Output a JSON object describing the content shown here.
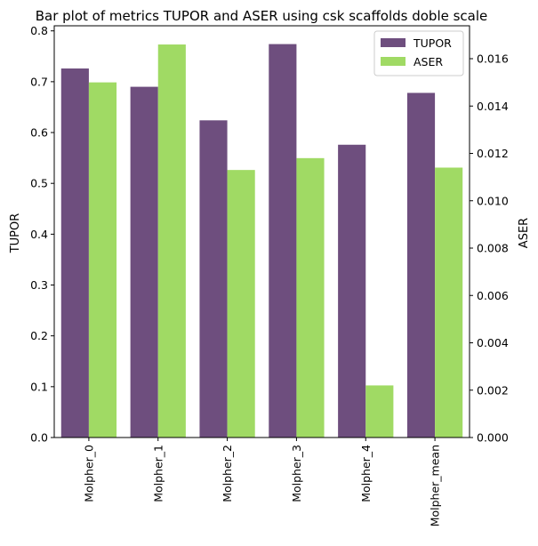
{
  "chart_data": {
    "type": "bar",
    "title": "Bar plot of metrics TUPOR and ASER using csk scaffolds doble scale",
    "categories": [
      "Molpher_0",
      "Molpher_1",
      "Molpher_2",
      "Molpher_3",
      "Molpher_4",
      "Molpher_mean"
    ],
    "series": [
      {
        "name": "TUPOR",
        "axis": "left",
        "color": "#6e4e7e",
        "values": [
          0.726,
          0.69,
          0.624,
          0.774,
          0.576,
          0.678
        ]
      },
      {
        "name": "ASER",
        "axis": "right",
        "color": "#a0da64",
        "values": [
          0.015,
          0.0166,
          0.0113,
          0.0118,
          0.0022,
          0.0114
        ]
      }
    ],
    "ylabel": "TUPOR",
    "ylabel_right": "ASER",
    "ylim": [
      0,
      0.81
    ],
    "ylim_right": [
      0,
      0.01739
    ],
    "yticks": [
      "0.0",
      "0.1",
      "0.2",
      "0.3",
      "0.4",
      "0.5",
      "0.6",
      "0.7",
      "0.8"
    ],
    "yticks_right": [
      "0.000",
      "0.002",
      "0.004",
      "0.006",
      "0.008",
      "0.010",
      "0.012",
      "0.014",
      "0.016"
    ],
    "legend": "top-right",
    "grid": false
  }
}
